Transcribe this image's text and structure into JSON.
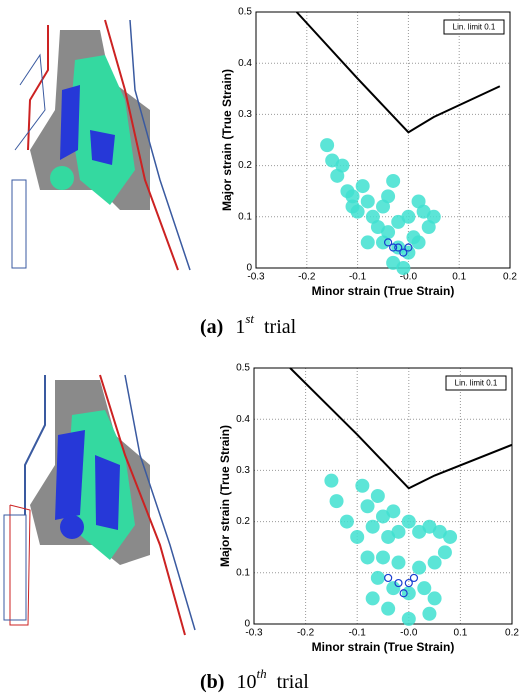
{
  "chart_data": [
    {
      "type": "scatter",
      "x_label": "Minor strain (True Strain)",
      "y_label": "Major strain (True Strain)",
      "annotation": "Lin. limit 0.1",
      "caption_label": "(a)",
      "caption_number": "1",
      "caption_sup": "st",
      "caption_text": "trial",
      "xlim": [
        -0.3,
        0.2
      ],
      "ylim": [
        0,
        0.5
      ],
      "xticks": [
        -0.3,
        -0.2,
        -0.1,
        {
          "value": 0,
          "label": "-0.0"
        },
        0.1,
        0.2
      ],
      "yticks": [
        0,
        0.1,
        0.2,
        0.3,
        0.4,
        0.5
      ],
      "grid": true,
      "series": [
        {
          "color": "#40e0d0",
          "x": [
            -0.16,
            -0.15,
            -0.14,
            -0.12,
            -0.13,
            -0.11,
            -0.09,
            -0.08,
            -0.1,
            -0.07,
            -0.05,
            -0.04,
            -0.03,
            -0.06,
            -0.04,
            -0.02,
            0.0,
            0.02,
            0.03,
            0.05,
            0.04,
            0.01,
            -0.02,
            -0.05,
            -0.08,
            0.0,
            -0.03,
            -0.01,
            0.02,
            -0.11
          ],
          "y": [
            0.24,
            0.21,
            0.18,
            0.15,
            0.2,
            0.14,
            0.16,
            0.13,
            0.11,
            0.1,
            0.12,
            0.14,
            0.17,
            0.08,
            0.07,
            0.09,
            0.1,
            0.13,
            0.11,
            0.1,
            0.08,
            0.06,
            0.04,
            0.05,
            0.05,
            0.03,
            0.01,
            0.0,
            0.05,
            0.12
          ]
        },
        {
          "color": "#1a3fd0",
          "x": [
            -0.04,
            -0.02,
            0.0,
            -0.01,
            -0.03
          ],
          "y": [
            0.05,
            0.04,
            0.04,
            0.03,
            0.04
          ]
        }
      ],
      "limit_curve": {
        "color": "#000000",
        "x": [
          -0.22,
          -0.1,
          0.0,
          0.05,
          0.18
        ],
        "y": [
          0.5,
          0.37,
          0.265,
          0.295,
          0.355
        ]
      }
    },
    {
      "type": "scatter",
      "x_label": "Minor strain (True Strain)",
      "y_label": "Major strain (True Strain)",
      "annotation": "Lin. limit 0.1",
      "caption_label": "(b)",
      "caption_number": "10",
      "caption_sup": "th",
      "caption_text": "trial",
      "xlim": [
        -0.3,
        0.2
      ],
      "ylim": [
        0,
        0.5
      ],
      "xticks": [
        -0.3,
        -0.2,
        -0.1,
        {
          "value": 0,
          "label": "-0.0"
        },
        0.1,
        0.2
      ],
      "yticks": [
        0,
        0.1,
        0.2,
        0.3,
        0.4,
        0.5
      ],
      "grid": true,
      "series": [
        {
          "color": "#40e0d0",
          "x": [
            -0.15,
            -0.14,
            -0.12,
            -0.1,
            -0.09,
            -0.08,
            -0.07,
            -0.06,
            -0.05,
            -0.04,
            -0.03,
            -0.02,
            0.0,
            0.02,
            0.04,
            0.06,
            0.08,
            0.07,
            0.05,
            0.02,
            -0.02,
            -0.05,
            -0.08,
            -0.06,
            -0.03,
            0.0,
            0.03,
            0.05,
            -0.04,
            0.0,
            0.04,
            -0.07
          ],
          "y": [
            0.28,
            0.24,
            0.2,
            0.17,
            0.27,
            0.23,
            0.19,
            0.25,
            0.21,
            0.17,
            0.22,
            0.18,
            0.2,
            0.18,
            0.19,
            0.18,
            0.17,
            0.14,
            0.12,
            0.11,
            0.12,
            0.13,
            0.13,
            0.09,
            0.07,
            0.06,
            0.07,
            0.05,
            0.03,
            0.01,
            0.02,
            0.05
          ]
        },
        {
          "color": "#1a3fd0",
          "x": [
            -0.04,
            -0.02,
            0.0,
            0.01,
            -0.01
          ],
          "y": [
            0.09,
            0.08,
            0.08,
            0.09,
            0.06
          ]
        }
      ],
      "limit_curve": {
        "color": "#000000",
        "x": [
          -0.23,
          -0.1,
          0.0,
          0.05,
          0.2
        ],
        "y": [
          0.5,
          0.37,
          0.265,
          0.29,
          0.35
        ]
      }
    }
  ]
}
